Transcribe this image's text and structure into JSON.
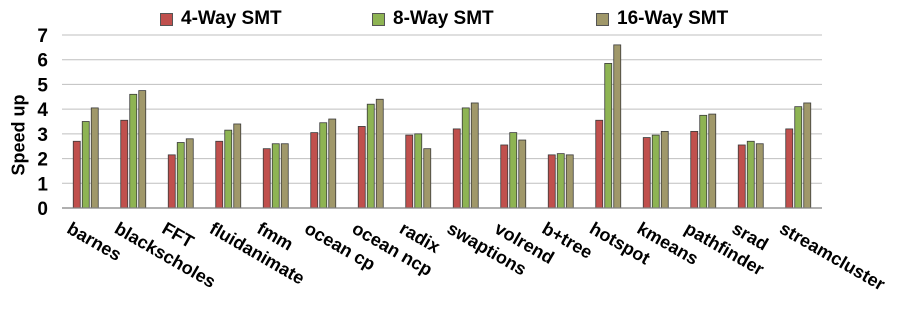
{
  "chart_data": {
    "type": "bar",
    "title": "",
    "xlabel": "",
    "ylabel": "Speed up",
    "ylim": [
      0,
      7
    ],
    "yticks": [
      "0",
      "1",
      "2",
      "3",
      "4",
      "5",
      "6",
      "7"
    ],
    "grid": true,
    "legend_position": "top",
    "categories": [
      "barnes",
      "blackscholes",
      "FFT",
      "fluidanimate",
      "fmm",
      "ocean cp",
      "ocean ncp",
      "radix",
      "swaptions",
      "volrend",
      "b+tree",
      "hotspot",
      "kmeans",
      "pathfinder",
      "srad",
      "streamcluster"
    ],
    "series": [
      {
        "name": "4-Way SMT",
        "color": "#c0504d",
        "values": [
          2.7,
          3.55,
          2.15,
          2.7,
          2.4,
          3.05,
          3.3,
          2.95,
          3.2,
          2.55,
          2.15,
          3.55,
          2.85,
          3.1,
          2.55,
          3.2
        ]
      },
      {
        "name": "8-Way SMT",
        "color": "#8eb453",
        "values": [
          3.5,
          4.6,
          2.65,
          3.15,
          2.6,
          3.45,
          4.2,
          3.0,
          4.05,
          3.05,
          2.2,
          5.85,
          2.95,
          3.75,
          2.7,
          4.1
        ]
      },
      {
        "name": "16-Way SMT",
        "color": "#a0986a",
        "values": [
          4.05,
          4.75,
          2.8,
          3.4,
          2.6,
          3.6,
          4.4,
          2.4,
          4.25,
          2.75,
          2.15,
          6.6,
          3.1,
          3.8,
          2.6,
          4.25
        ]
      }
    ]
  }
}
